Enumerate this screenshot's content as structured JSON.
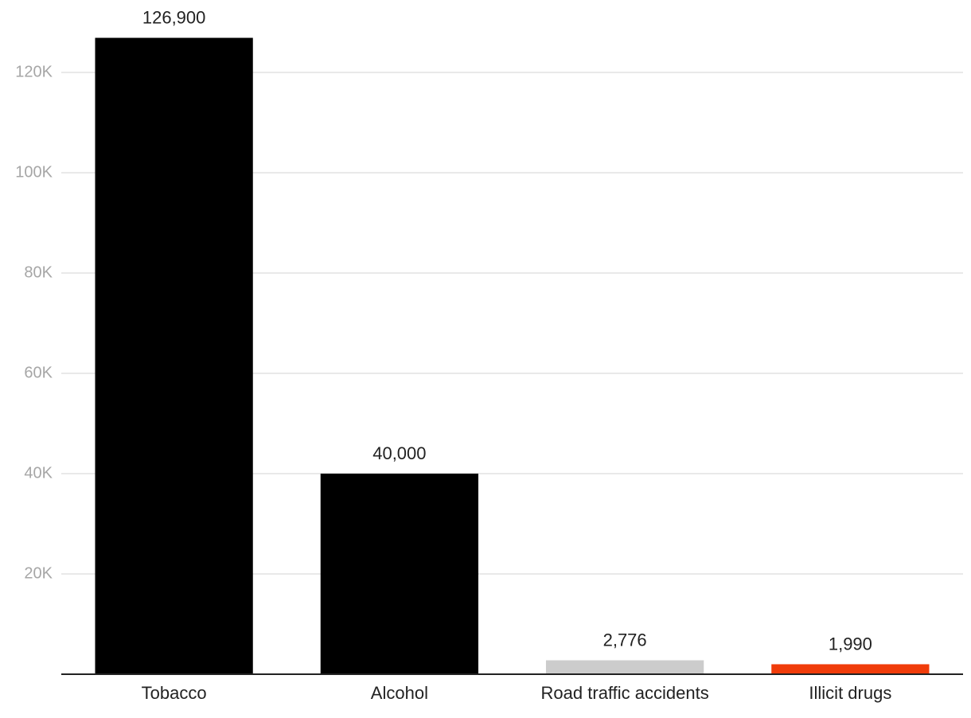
{
  "chart_data": {
    "type": "bar",
    "categories": [
      "Tobacco",
      "Alcohol",
      "Road traffic accidents",
      "Illicit drugs"
    ],
    "values": [
      126900,
      40000,
      2776,
      1990
    ],
    "value_labels": [
      "126,900",
      "40,000",
      "2,776",
      "1,990"
    ],
    "colors": [
      "#000000",
      "#000000",
      "#cccccc",
      "#f03c0a"
    ],
    "ylim": [
      0,
      130000
    ],
    "yticks": [
      {
        "value": 20000,
        "label": "20K"
      },
      {
        "value": 40000,
        "label": "40K"
      },
      {
        "value": 60000,
        "label": "60K"
      },
      {
        "value": 80000,
        "label": "80K"
      },
      {
        "value": 100000,
        "label": "100K"
      },
      {
        "value": 120000,
        "label": "120K"
      }
    ],
    "grid": true
  }
}
